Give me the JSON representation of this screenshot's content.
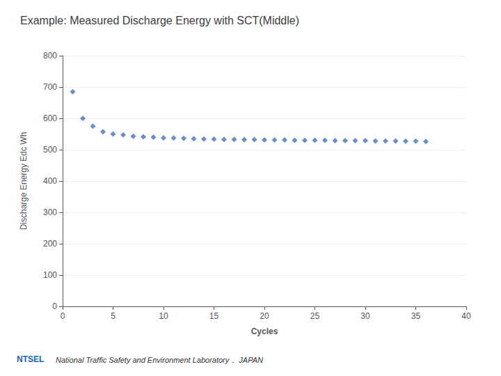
{
  "chart_data": {
    "type": "scatter",
    "title": "Example: Measured Discharge Energy with SCT(Middle)",
    "x_label": "Cycles",
    "y_label": "Discharge Energy Edc Wh",
    "x": [
      1,
      2,
      3,
      4,
      5,
      6,
      7,
      8,
      9,
      10,
      11,
      12,
      13,
      14,
      15,
      16,
      17,
      18,
      19,
      20,
      21,
      22,
      23,
      24,
      25,
      26,
      27,
      28,
      29,
      30,
      31,
      32,
      33,
      34,
      35,
      36
    ],
    "values": [
      685,
      600,
      575,
      557,
      550,
      547,
      543,
      541,
      540,
      538,
      537,
      536,
      535,
      534,
      534,
      533,
      533,
      532,
      532,
      531,
      531,
      531,
      530,
      530,
      530,
      530,
      529,
      529,
      529,
      529,
      528,
      528,
      528,
      527,
      527,
      526
    ],
    "color": "#4472C4",
    "marker": "diamond",
    "xlim": [
      0,
      40
    ],
    "xticks": [
      0,
      5,
      10,
      15,
      20,
      25,
      30,
      35,
      40
    ],
    "ylim": [
      0,
      800
    ],
    "yticks": [
      0,
      100,
      200,
      300,
      400,
      500,
      600,
      700,
      800
    ],
    "grid": true,
    "annotations": [
      "NTSEL",
      "National Traffic Safety and Environment Laboratory． JAPAN"
    ]
  }
}
